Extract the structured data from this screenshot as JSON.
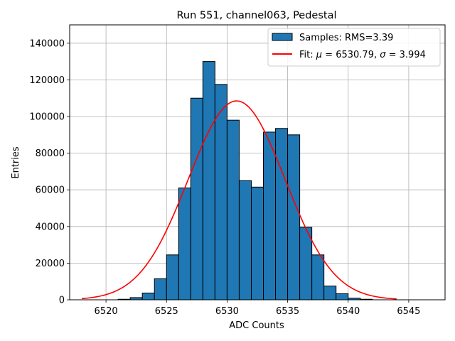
{
  "chart_data": {
    "type": "bar",
    "title": "Run 551, channel063, Pedestal",
    "xlabel": "ADC Counts",
    "ylabel": "Entries",
    "xlim": [
      6517,
      6548
    ],
    "ylim": [
      0,
      150000
    ],
    "xticks": [
      6520,
      6525,
      6530,
      6535,
      6540,
      6545
    ],
    "yticks": [
      0,
      20000,
      40000,
      60000,
      80000,
      100000,
      120000,
      140000
    ],
    "grid": true,
    "legend_position": "top-right",
    "colors": {
      "bars": "#1f77b4",
      "bar_edge": "#000000",
      "fit": "#ff0000",
      "grid": "#b0b0b0"
    },
    "series": [
      {
        "name": "Samples: RMS=3.39",
        "kind": "histogram",
        "bins": [
          {
            "left": 6521,
            "right": 6522,
            "value": 300
          },
          {
            "left": 6522,
            "right": 6523,
            "value": 1200
          },
          {
            "left": 6523,
            "right": 6524,
            "value": 3700
          },
          {
            "left": 6524,
            "right": 6525,
            "value": 11500
          },
          {
            "left": 6525,
            "right": 6526,
            "value": 24500
          },
          {
            "left": 6526,
            "right": 6527,
            "value": 61000
          },
          {
            "left": 6527,
            "right": 6528,
            "value": 110000
          },
          {
            "left": 6528,
            "right": 6529,
            "value": 130000
          },
          {
            "left": 6529,
            "right": 6530,
            "value": 117500
          },
          {
            "left": 6530,
            "right": 6531,
            "value": 98000
          },
          {
            "left": 6531,
            "right": 6532,
            "value": 65000
          },
          {
            "left": 6532,
            "right": 6533,
            "value": 61500
          },
          {
            "left": 6533,
            "right": 6534,
            "value": 91500
          },
          {
            "left": 6534,
            "right": 6535,
            "value": 93500
          },
          {
            "left": 6535,
            "right": 6536,
            "value": 90000
          },
          {
            "left": 6536,
            "right": 6537,
            "value": 39500
          },
          {
            "left": 6537,
            "right": 6538,
            "value": 24500
          },
          {
            "left": 6538,
            "right": 6539,
            "value": 7500
          },
          {
            "left": 6539,
            "right": 6540,
            "value": 3300
          },
          {
            "left": 6540,
            "right": 6541,
            "value": 900
          },
          {
            "left": 6541,
            "right": 6542,
            "value": 300
          }
        ]
      },
      {
        "name": "Fit: μ = 6530.79, σ = 3.994",
        "legend_parts": [
          "Fit: ",
          "μ",
          " = 6530.79, ",
          "σ",
          " = 3.994"
        ],
        "kind": "line",
        "function": "gaussian",
        "mu": 6530.79,
        "sigma": 3.994,
        "amplitude": 108500,
        "x_range": [
          6518,
          6544
        ]
      }
    ]
  }
}
